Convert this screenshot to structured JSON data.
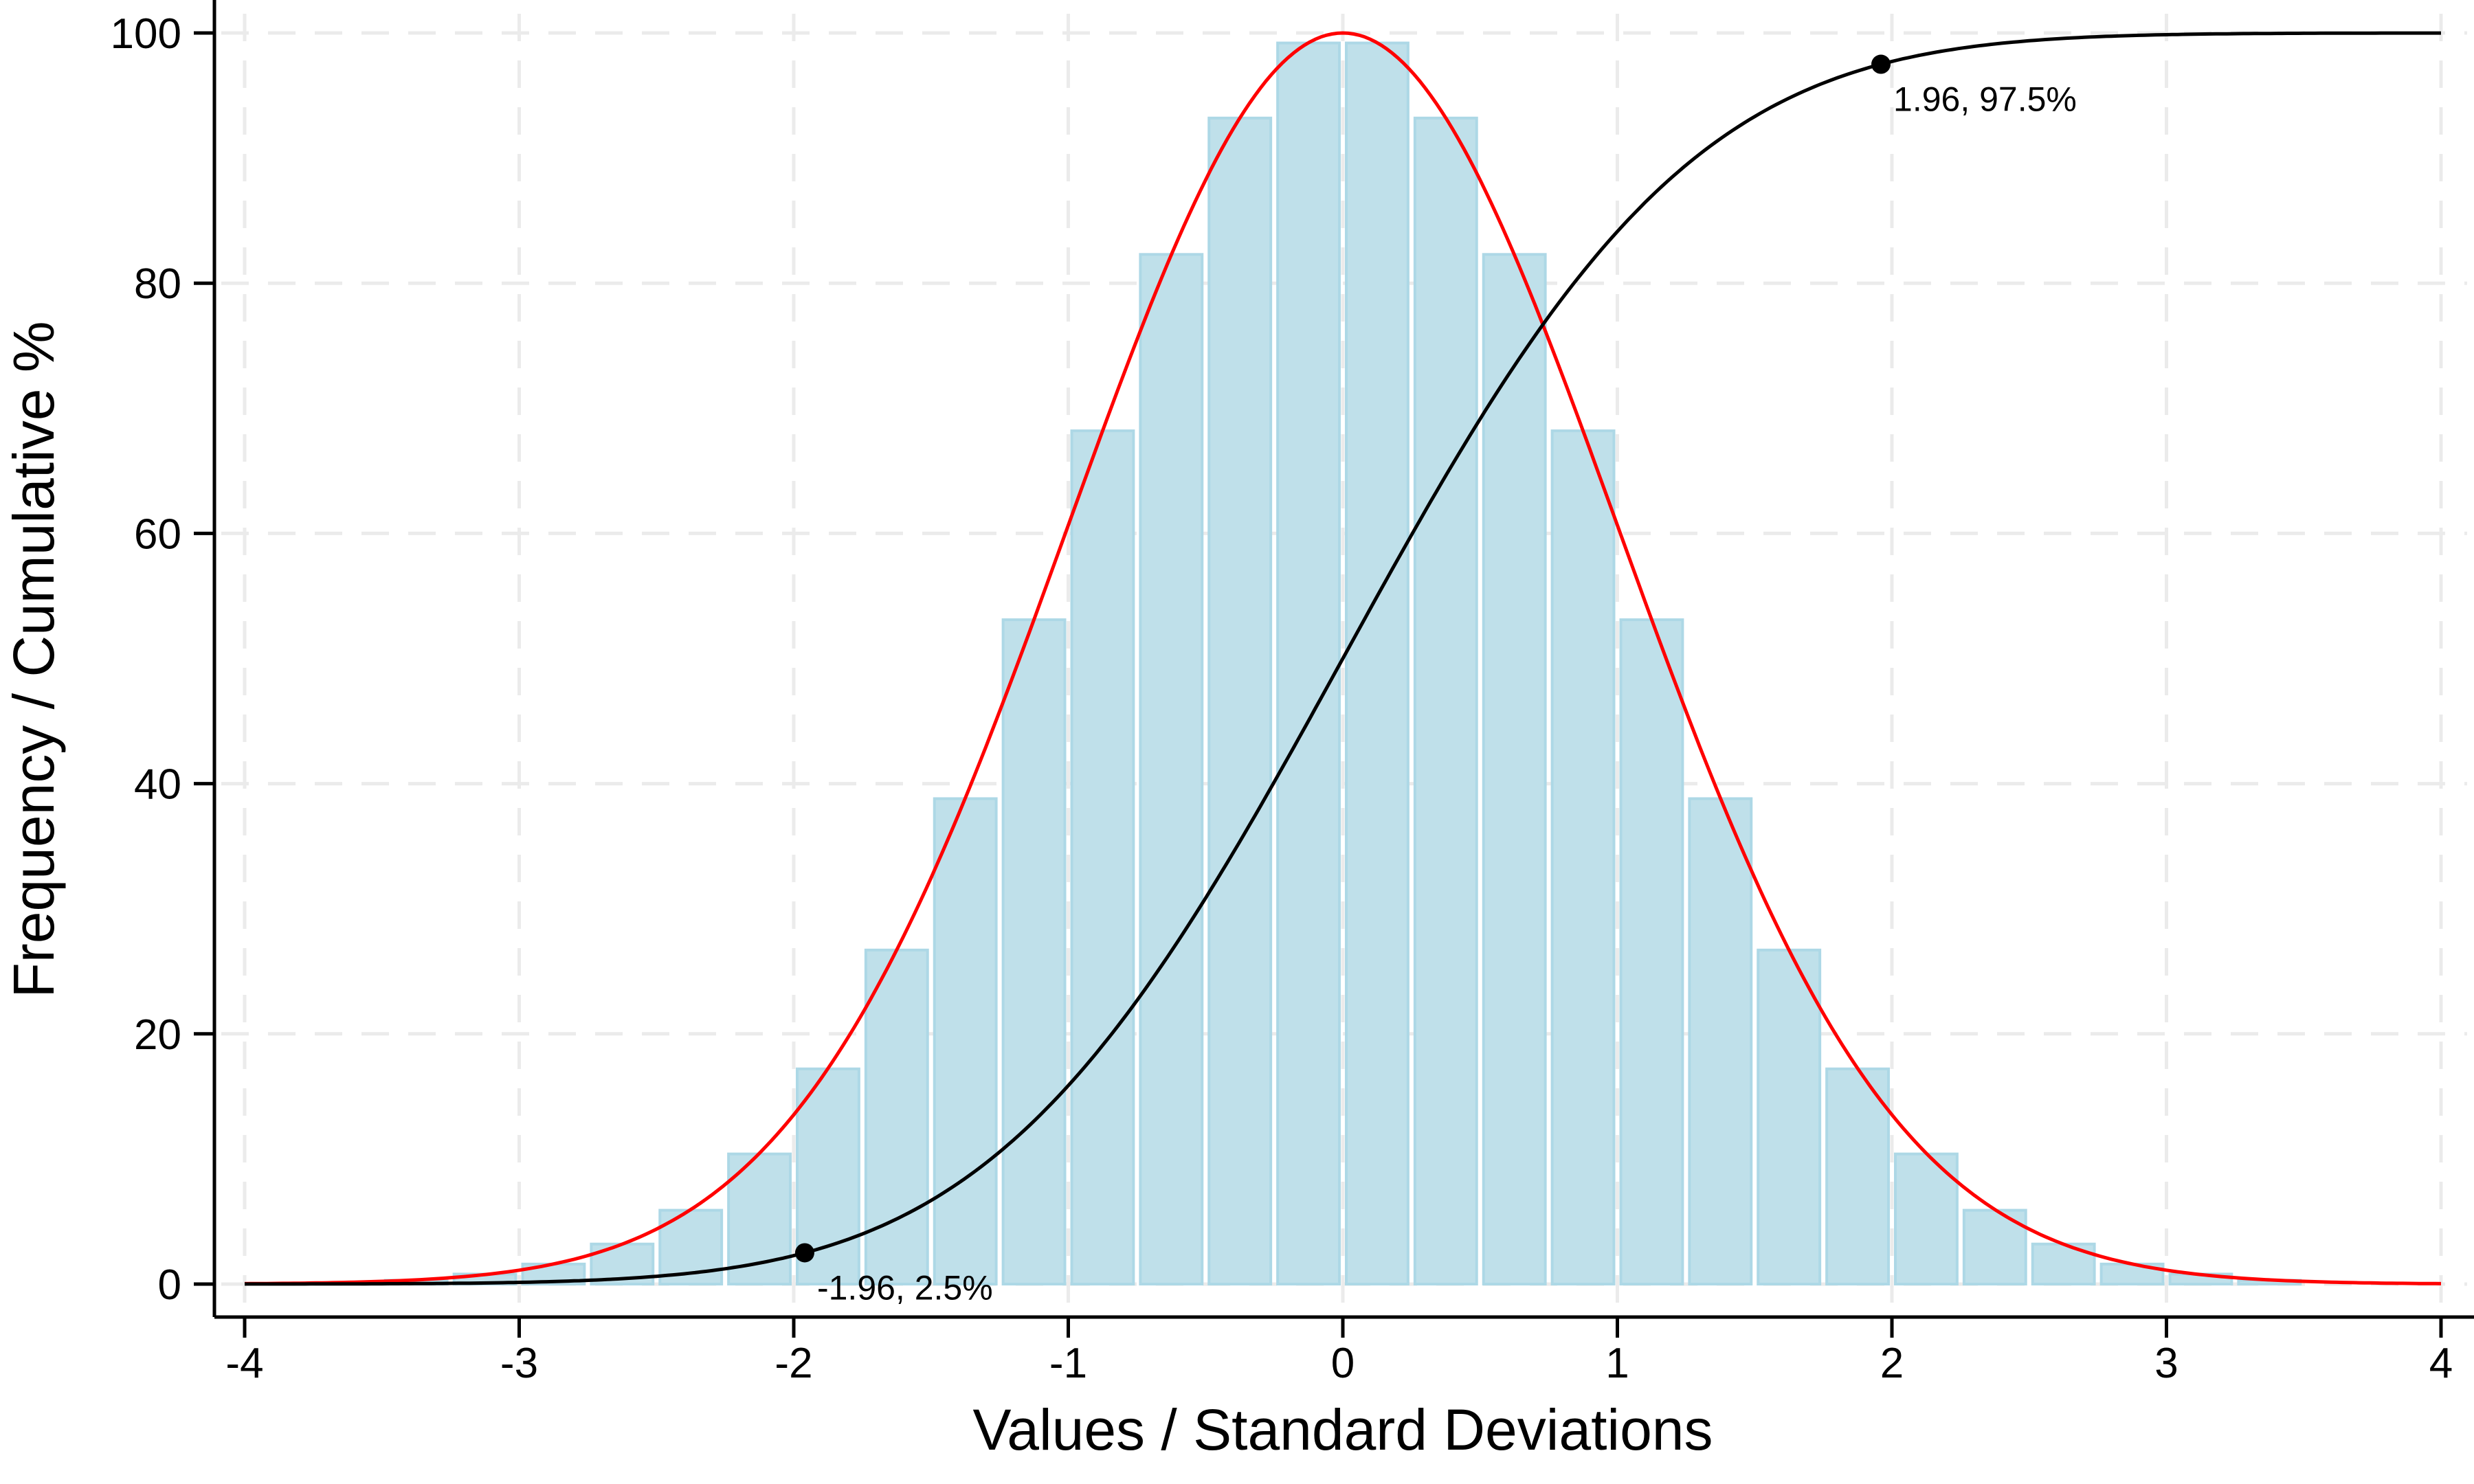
{
  "chart_data": {
    "type": "bar",
    "xlabel": "Values / Standard Deviations",
    "ylabel": "Frequency / Cumulative %",
    "xlim": [
      -4,
      4
    ],
    "ylim": [
      0,
      100
    ],
    "xticks": [
      "-4",
      "-3",
      "-2",
      "-1",
      "0",
      "1",
      "2",
      "3",
      "4"
    ],
    "yticks": [
      "0",
      "20",
      "40",
      "60",
      "80",
      "100"
    ],
    "grid": true,
    "bins": {
      "centers": [
        -3.375,
        -3.125,
        -2.875,
        -2.625,
        -2.375,
        -2.125,
        -1.875,
        -1.625,
        -1.375,
        -1.125,
        -0.875,
        -0.625,
        -0.375,
        -0.125,
        0.125,
        0.375,
        0.625,
        0.875,
        1.125,
        1.375,
        1.625,
        1.875,
        2.125,
        2.375,
        2.625,
        2.875,
        3.125,
        3.375
      ],
      "width": 0.25,
      "values": [
        0.3,
        0.8,
        1.6,
        3.2,
        5.9,
        10.4,
        17.2,
        26.7,
        38.8,
        53.1,
        68.2,
        82.3,
        93.2,
        99.2,
        99.2,
        93.2,
        82.3,
        68.2,
        53.1,
        38.8,
        26.7,
        17.2,
        10.4,
        5.9,
        3.2,
        1.6,
        0.8,
        0.3
      ]
    },
    "series": [
      {
        "kind": "normal-density-scaled",
        "peak": 100,
        "mean": 0,
        "sd": 1,
        "color": "#ff0000"
      },
      {
        "kind": "normal-cdf-percent",
        "mean": 0,
        "sd": 1,
        "color": "#000000"
      }
    ],
    "annotations": [
      {
        "x": -1.96,
        "y": 2.5,
        "label": "-1.96, 2.5%"
      },
      {
        "x": 1.96,
        "y": 97.5,
        "label": "1.96, 97.5%"
      }
    ],
    "colors": {
      "bar_fill": "#bfe0ea",
      "bar_edge": "#add8e6",
      "grid": "#ebebeb"
    }
  }
}
